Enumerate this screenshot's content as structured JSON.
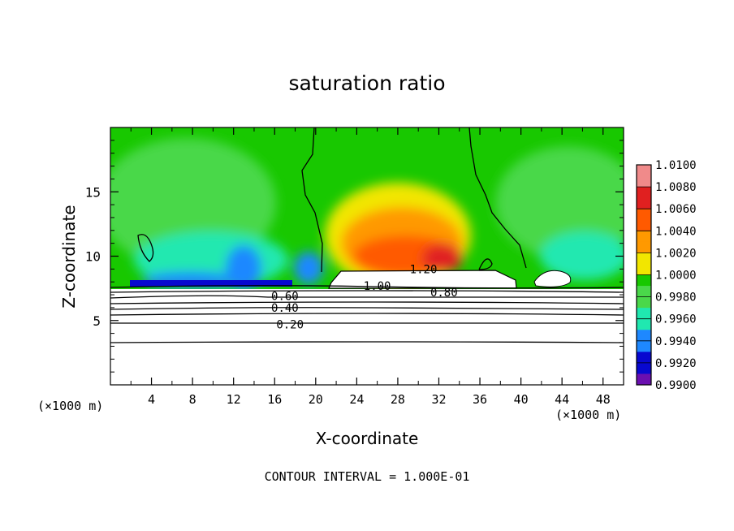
{
  "chart_data": {
    "type": "heatmap",
    "title": "saturation ratio",
    "xlabel": "X-coordinate",
    "ylabel": "Z-coordinate",
    "x_unit": "(×1000 m)",
    "y_unit": "(×1000 m)",
    "xlim": [
      0,
      50
    ],
    "ylim": [
      0,
      20
    ],
    "x_ticks": [
      "4",
      "8",
      "12",
      "16",
      "20",
      "24",
      "28",
      "32",
      "36",
      "40",
      "44",
      "48"
    ],
    "y_ticks": [
      "5",
      "10",
      "15"
    ],
    "colorbar": {
      "labels": [
        "1.0100",
        "1.0080",
        "1.0060",
        "1.0040",
        "1.0020",
        "1.0000",
        "0.9980",
        "0.9960",
        "0.9940",
        "0.9920",
        "0.9900"
      ],
      "colors": [
        "#f08a8a",
        "#e02020",
        "#ff5a00",
        "#ff9900",
        "#f2e600",
        "#18c800",
        "#4ad84a",
        "#20e8b0",
        "#1e88ff",
        "#0808d0",
        "#6a0fb0"
      ]
    },
    "contour_labels": [
      {
        "text": "1.20",
        "x": 30.5,
        "y": 9.0
      },
      {
        "text": "1.00",
        "x": 26.0,
        "y": 7.7
      },
      {
        "text": "0.80",
        "x": 32.5,
        "y": 7.2
      },
      {
        "text": "0.60",
        "x": 17.0,
        "y": 6.9
      },
      {
        "text": "0.40",
        "x": 17.0,
        "y": 6.0
      },
      {
        "text": "0.20",
        "x": 17.5,
        "y": 4.7
      }
    ],
    "contour_levels": [
      0.2,
      0.4,
      0.6,
      0.8,
      1.0,
      1.2
    ],
    "footer": "CONTOUR INTERVAL = 1.000E-01"
  }
}
